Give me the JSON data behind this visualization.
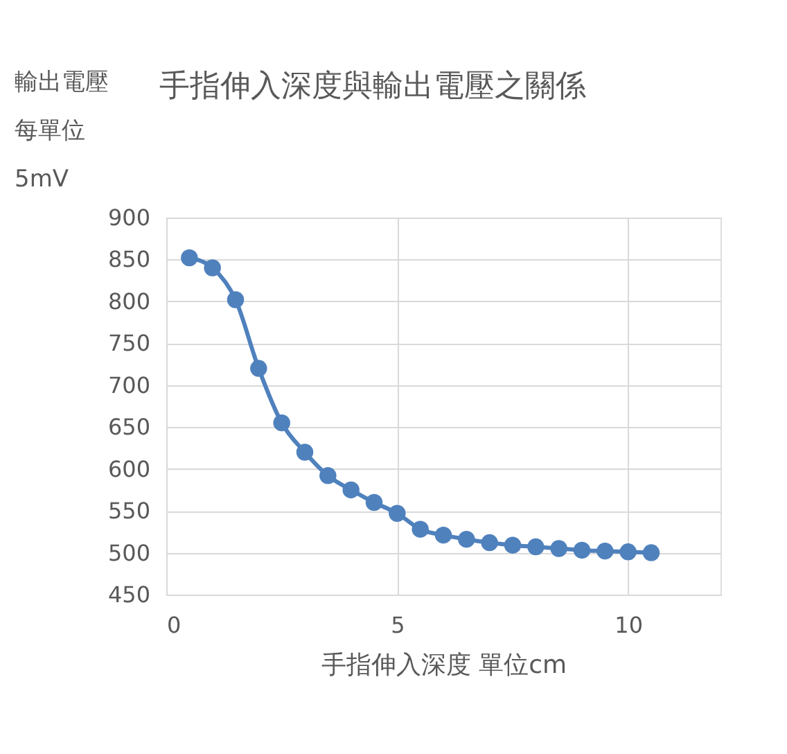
{
  "chart_data": {
    "type": "line",
    "title": "手指伸入深度與輸出電壓之關係",
    "ylabel": "輸出電壓每單位5mV",
    "xlabel": "手指伸入深度 單位cm",
    "x": [
      0.5,
      1,
      1.5,
      2,
      2.5,
      3,
      3.5,
      4,
      4.5,
      5,
      5.5,
      6,
      6.5,
      7,
      7.5,
      8,
      8.5,
      9,
      9.5,
      10,
      10.5
    ],
    "series": [
      {
        "color": "#4f81bd",
        "values": [
          852,
          840,
          802,
          720,
          655,
          620,
          592,
          575,
          560,
          547,
          528,
          521,
          516,
          512,
          509,
          507,
          505,
          503,
          502,
          501,
          500
        ]
      }
    ],
    "xlim": [
      0,
      12
    ],
    "xticks": [
      0,
      5,
      10
    ],
    "ylim": [
      450,
      900
    ],
    "yticks": [
      450,
      500,
      550,
      600,
      650,
      700,
      750,
      800,
      850,
      900
    ],
    "grid": true,
    "marker": "circle",
    "line_style": "solid"
  }
}
